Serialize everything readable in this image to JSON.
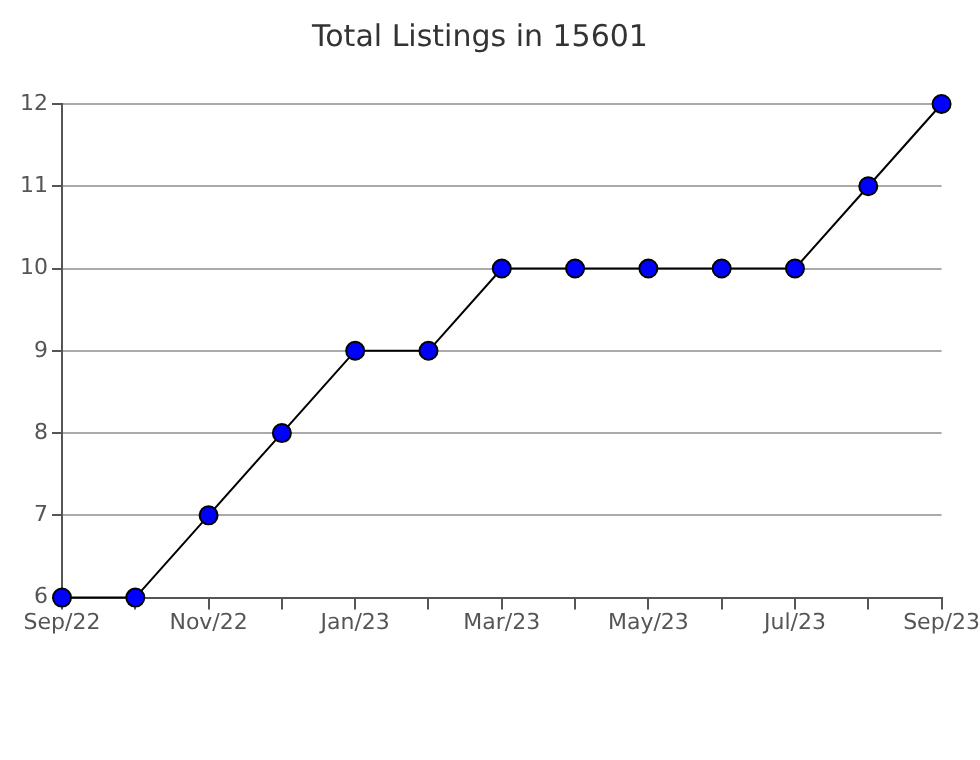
{
  "chart_data": {
    "type": "line",
    "title": "Total Listings in 15601",
    "categories": [
      "Sep/22",
      null,
      "Nov/22",
      null,
      "Jan/23",
      null,
      "Mar/23",
      null,
      "May/23",
      null,
      "Jul/23",
      null,
      "Sep/23"
    ],
    "series": [
      {
        "color": "#0000ff",
        "values": [
          6,
          6,
          7,
          8,
          9,
          9,
          10,
          10,
          10,
          10,
          10,
          11,
          12
        ]
      }
    ],
    "ylim": [
      6,
      12
    ],
    "yticks": [
      6,
      7,
      8,
      9,
      10,
      11,
      12
    ],
    "grid": "y",
    "legend": false,
    "marker": "circle",
    "line_style": "solid"
  }
}
